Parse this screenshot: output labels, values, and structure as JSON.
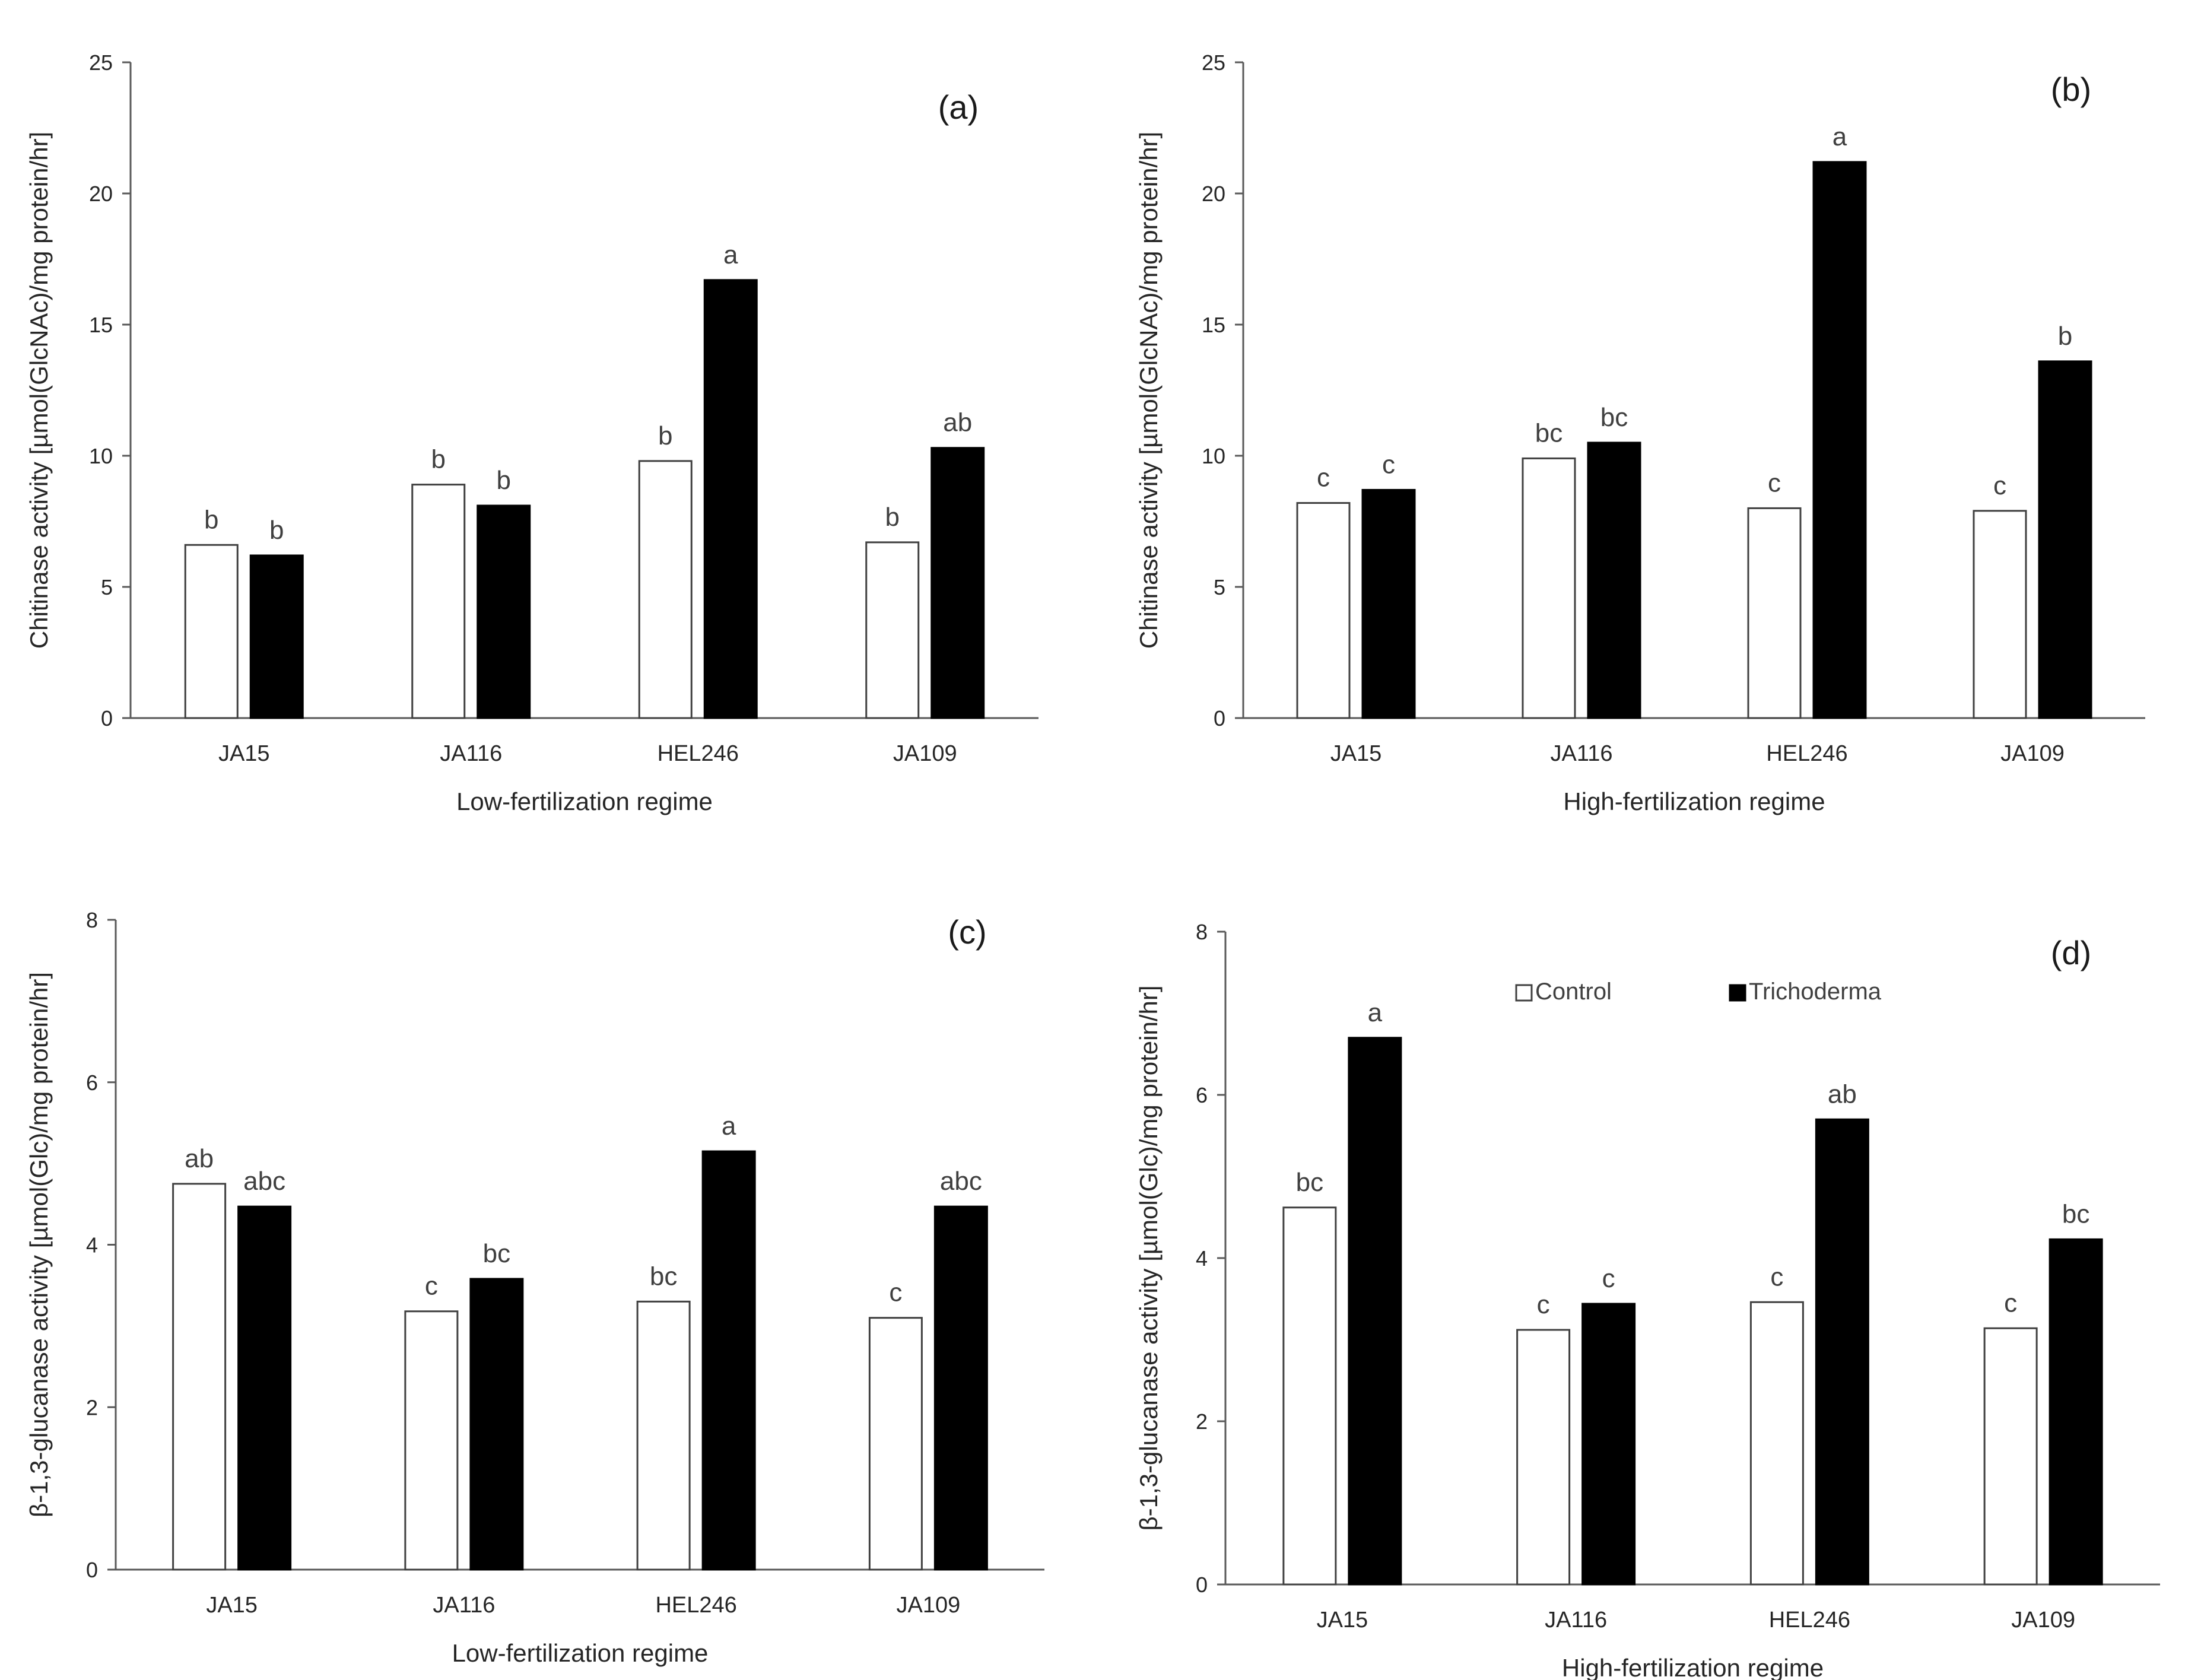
{
  "legend": [
    {
      "name": "Control",
      "color": "#ffffff"
    },
    {
      "name": "Trichoderma",
      "color": "#000000"
    }
  ],
  "chart_data": [
    {
      "type": "bar",
      "panel": "(a)",
      "ylabel": "Chitinase activity [µmol(GlcNAc)/mg protein/hr]",
      "xlabel": "Low-fertilization regime",
      "ylim": [
        0,
        25
      ],
      "yticks": [
        0,
        5,
        10,
        15,
        20,
        25
      ],
      "categories": [
        "JA15",
        "JA116",
        "HEL246",
        "JA109"
      ],
      "series": [
        {
          "name": "Control",
          "values": [
            6.6,
            8.9,
            9.8,
            6.7
          ],
          "letters": [
            "b",
            "b",
            "b",
            "b"
          ]
        },
        {
          "name": "Trichoderma",
          "values": [
            6.2,
            8.1,
            16.7,
            10.3
          ],
          "letters": [
            "b",
            "b",
            "a",
            "ab"
          ]
        }
      ]
    },
    {
      "type": "bar",
      "panel": "(b)",
      "ylabel": "Chitinase activity [µmol(GlcNAc)/mg protein/hr]",
      "xlabel": "High-fertilization regime",
      "ylim": [
        0,
        25
      ],
      "yticks": [
        0,
        5,
        10,
        15,
        20,
        25
      ],
      "categories": [
        "JA15",
        "JA116",
        "HEL246",
        "JA109"
      ],
      "series": [
        {
          "name": "Control",
          "values": [
            8.2,
            9.9,
            8.0,
            7.9
          ],
          "letters": [
            "c",
            "bc",
            "c",
            "c"
          ]
        },
        {
          "name": "Trichoderma",
          "values": [
            8.7,
            10.5,
            21.2,
            13.6
          ],
          "letters": [
            "c",
            "bc",
            "a",
            "b"
          ]
        }
      ]
    },
    {
      "type": "bar",
      "panel": "(c)",
      "ylabel": "β-1,3-glucanase activity [µmol(Glc)/mg protein/hr]",
      "xlabel": "Low-fertilization regime",
      "ylim": [
        0,
        8
      ],
      "yticks": [
        0,
        2,
        4,
        6,
        8
      ],
      "categories": [
        "JA15",
        "JA116",
        "HEL246",
        "JA109"
      ],
      "series": [
        {
          "name": "Control",
          "values": [
            4.75,
            3.18,
            3.3,
            3.1
          ],
          "letters": [
            "ab",
            "c",
            "bc",
            "c"
          ]
        },
        {
          "name": "Trichoderma",
          "values": [
            4.47,
            3.58,
            5.15,
            4.47
          ],
          "letters": [
            "abc",
            "bc",
            "a",
            "abc"
          ]
        }
      ]
    },
    {
      "type": "bar",
      "panel": "(d)",
      "ylabel": "β-1,3-glucanase activity [µmol(Glc)/mg protein/hr]",
      "xlabel": "High-fertilization regime",
      "ylim": [
        0,
        8
      ],
      "yticks": [
        0,
        2,
        4,
        6,
        8
      ],
      "categories": [
        "JA15",
        "JA116",
        "HEL246",
        "JA109"
      ],
      "series": [
        {
          "name": "Control",
          "values": [
            4.62,
            3.12,
            3.46,
            3.14
          ],
          "letters": [
            "bc",
            "c",
            "c",
            "c"
          ]
        },
        {
          "name": "Trichoderma",
          "values": [
            6.7,
            3.44,
            5.7,
            4.23
          ],
          "letters": [
            "a",
            "c",
            "ab",
            "bc"
          ]
        }
      ]
    }
  ]
}
